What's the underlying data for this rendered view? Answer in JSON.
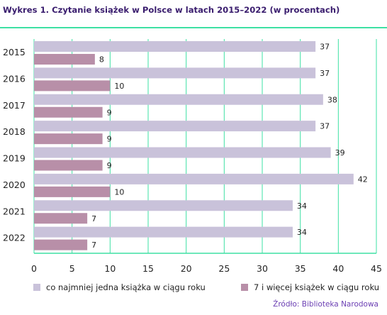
{
  "title": "Wykres 1. Czytanie książek w Polsce w latach 2015–2022 (w procentach)",
  "source": "Źródło: Biblioteka Narodowa",
  "colors": {
    "series1": "#c9c2da",
    "series2": "#b88fa8",
    "grid": "#3ee0a4",
    "title": "#3a1d6e",
    "source": "#6b3fb3"
  },
  "chart_data": {
    "type": "bar",
    "orientation": "horizontal",
    "categories": [
      "2015",
      "2016",
      "2017",
      "2018",
      "2019",
      "2020",
      "2021",
      "2022"
    ],
    "series": [
      {
        "name": "co najmniej jedna książka w ciągu roku",
        "values": [
          37,
          37,
          38,
          37,
          39,
          42,
          34,
          34
        ]
      },
      {
        "name": "7 i więcej książek w ciągu roku",
        "values": [
          8,
          10,
          9,
          9,
          9,
          10,
          7,
          7
        ]
      }
    ],
    "xticks": [
      0,
      5,
      10,
      15,
      20,
      25,
      30,
      35,
      40,
      45
    ],
    "xlim": [
      0,
      45
    ],
    "grid": "vertical",
    "legend": "bottom"
  }
}
